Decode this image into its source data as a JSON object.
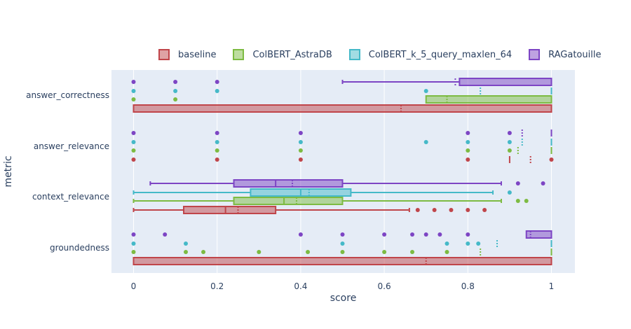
{
  "chart_data": {
    "type": "box",
    "orientation": "horizontal",
    "xlabel": "score",
    "ylabel": "metric",
    "xlim": [
      -0.05,
      1.05
    ],
    "x_ticks": [
      "0",
      "0.2",
      "0.4",
      "0.6",
      "0.8",
      "1"
    ],
    "grid": true,
    "legend_position": "top",
    "categories": [
      "answer_correctness",
      "answer_relevance",
      "context_relevance",
      "groundedness"
    ],
    "colors": {
      "baseline": "#c0454a",
      "ColBERT_AstraDB": "#7dbb42",
      "ColBERT_k_5_query_maxlen_64": "#45b9c8",
      "RAGatouille": "#7d45c4"
    },
    "series": [
      {
        "name": "baseline",
        "boxes": [
          {
            "metric": "answer_correctness",
            "lowerfence": 0,
            "q1": 0,
            "median": 1,
            "q3": 1,
            "upperfence": 1,
            "mean": 0.64,
            "outliers": []
          },
          {
            "metric": "answer_relevance",
            "lowerfence": 0.9,
            "q1": 0.9,
            "median": 0.9,
            "q3": 0.9,
            "upperfence": 0.9,
            "mean": 0.95,
            "outliers": [
              0,
              0.2,
              0.4,
              0.8,
              1
            ]
          },
          {
            "metric": "context_relevance",
            "lowerfence": 0,
            "q1": 0.12,
            "median": 0.22,
            "q3": 0.34,
            "upperfence": 0.66,
            "mean": 0.25,
            "outliers": [
              0.68,
              0.72,
              0.76,
              0.8,
              0.84
            ]
          },
          {
            "metric": "groundedness",
            "lowerfence": 0,
            "q1": 0,
            "median": 1,
            "q3": 1,
            "upperfence": 1,
            "mean": 0.7,
            "outliers": []
          }
        ]
      },
      {
        "name": "ColBERT_AstraDB",
        "boxes": [
          {
            "metric": "answer_correctness",
            "lowerfence": 0.7,
            "q1": 0.7,
            "median": 1,
            "q3": 1,
            "upperfence": 1,
            "mean": 0.75,
            "outliers": [
              0,
              0.1
            ]
          },
          {
            "metric": "answer_relevance",
            "lowerfence": 1,
            "q1": 1,
            "median": 1,
            "q3": 1,
            "upperfence": 1,
            "mean": 0.92,
            "outliers": [
              0,
              0.2,
              0.4,
              0.8,
              0.9
            ]
          },
          {
            "metric": "context_relevance",
            "lowerfence": 0,
            "q1": 0.24,
            "median": 0.36,
            "q3": 0.5,
            "upperfence": 0.88,
            "mean": 0.39,
            "outliers": [
              0.92,
              0.94
            ]
          },
          {
            "metric": "groundedness",
            "lowerfence": 1,
            "q1": 1,
            "median": 1,
            "q3": 1,
            "upperfence": 1,
            "mean": 0.83,
            "outliers": [
              0,
              0.125,
              0.167,
              0.3,
              0.417,
              0.5,
              0.6,
              0.667,
              0.75
            ]
          }
        ]
      },
      {
        "name": "ColBERT_k_5_query_maxlen_64",
        "boxes": [
          {
            "metric": "answer_correctness",
            "lowerfence": 1,
            "q1": 1,
            "median": 1,
            "q3": 1,
            "upperfence": 1,
            "mean": 0.83,
            "outliers": [
              0,
              0.1,
              0.2,
              0.7
            ]
          },
          {
            "metric": "answer_relevance",
            "lowerfence": 1,
            "q1": 1,
            "median": 1,
            "q3": 1,
            "upperfence": 1,
            "mean": 0.93,
            "outliers": [
              0,
              0.2,
              0.4,
              0.7,
              0.8,
              0.9
            ]
          },
          {
            "metric": "context_relevance",
            "lowerfence": 0,
            "q1": 0.28,
            "median": 0.4,
            "q3": 0.52,
            "upperfence": 0.86,
            "mean": 0.42,
            "outliers": [
              0.9
            ]
          },
          {
            "metric": "groundedness",
            "lowerfence": 1,
            "q1": 1,
            "median": 1,
            "q3": 1,
            "upperfence": 1,
            "mean": 0.87,
            "outliers": [
              0,
              0.125,
              0.5,
              0.75,
              0.8,
              0.825
            ]
          }
        ]
      },
      {
        "name": "RAGatouille",
        "boxes": [
          {
            "metric": "answer_correctness",
            "lowerfence": 0.5,
            "q1": 0.78,
            "median": 1,
            "q3": 1,
            "upperfence": 1,
            "mean": 0.77,
            "outliers": [
              0,
              0.1,
              0.2
            ]
          },
          {
            "metric": "answer_relevance",
            "lowerfence": 1,
            "q1": 1,
            "median": 1,
            "q3": 1,
            "upperfence": 1,
            "mean": 0.93,
            "outliers": [
              0,
              0.2,
              0.4,
              0.8,
              0.9
            ]
          },
          {
            "metric": "context_relevance",
            "lowerfence": 0.04,
            "q1": 0.24,
            "median": 0.34,
            "q3": 0.5,
            "upperfence": 0.88,
            "mean": 0.38,
            "outliers": [
              0.92,
              0.98
            ]
          },
          {
            "metric": "groundedness",
            "lowerfence": 0.94,
            "q1": 0.94,
            "median": 1,
            "q3": 1,
            "upperfence": 1,
            "mean": 0.95,
            "outliers": [
              0,
              0.075,
              0.4,
              0.5,
              0.6,
              0.667,
              0.7,
              0.733,
              0.8
            ]
          }
        ]
      }
    ]
  }
}
